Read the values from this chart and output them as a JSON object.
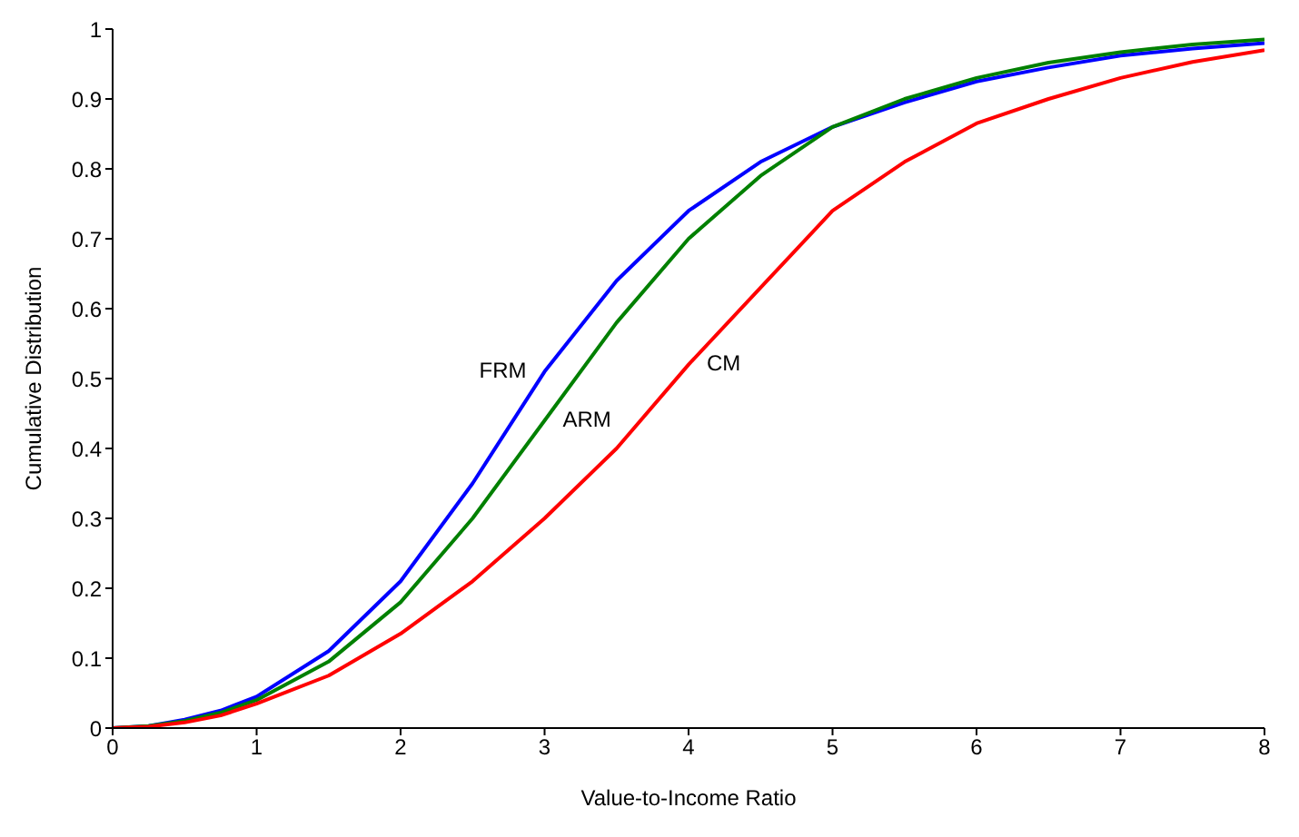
{
  "chart_data": {
    "type": "line",
    "xlabel": "Value-to-Income Ratio",
    "ylabel": "Cumulative Distribution",
    "x": [
      0,
      0.25,
      0.5,
      0.75,
      1,
      1.5,
      2,
      2.5,
      3,
      3.5,
      4,
      4.5,
      5,
      5.5,
      6,
      6.5,
      7,
      7.5,
      8
    ],
    "series": [
      {
        "name": "FRM",
        "color": "#0000ff",
        "values": [
          0,
          0.003,
          0.012,
          0.025,
          0.045,
          0.11,
          0.21,
          0.35,
          0.51,
          0.64,
          0.74,
          0.81,
          0.86,
          0.895,
          0.925,
          0.945,
          0.962,
          0.972,
          0.98
        ]
      },
      {
        "name": "ARM",
        "color": "#008000",
        "values": [
          0,
          0.003,
          0.01,
          0.022,
          0.04,
          0.095,
          0.18,
          0.3,
          0.44,
          0.58,
          0.7,
          0.79,
          0.86,
          0.9,
          0.93,
          0.952,
          0.967,
          0.978,
          0.985
        ]
      },
      {
        "name": "CM",
        "color": "#ff0000",
        "values": [
          0,
          0.002,
          0.008,
          0.018,
          0.035,
          0.075,
          0.135,
          0.21,
          0.3,
          0.4,
          0.52,
          0.63,
          0.74,
          0.81,
          0.865,
          0.9,
          0.93,
          0.953,
          0.97
        ]
      }
    ],
    "xlim": [
      0,
      8
    ],
    "xticks": [
      0,
      1,
      2,
      3,
      4,
      5,
      6,
      7,
      8
    ],
    "ylim": [
      0,
      1
    ],
    "yticks": [
      0,
      0.1,
      0.2,
      0.3,
      0.4,
      0.5,
      0.6,
      0.7,
      0.8,
      0.9,
      1
    ],
    "grid": false,
    "legend": false,
    "marker": "none",
    "line_style": "solid"
  }
}
